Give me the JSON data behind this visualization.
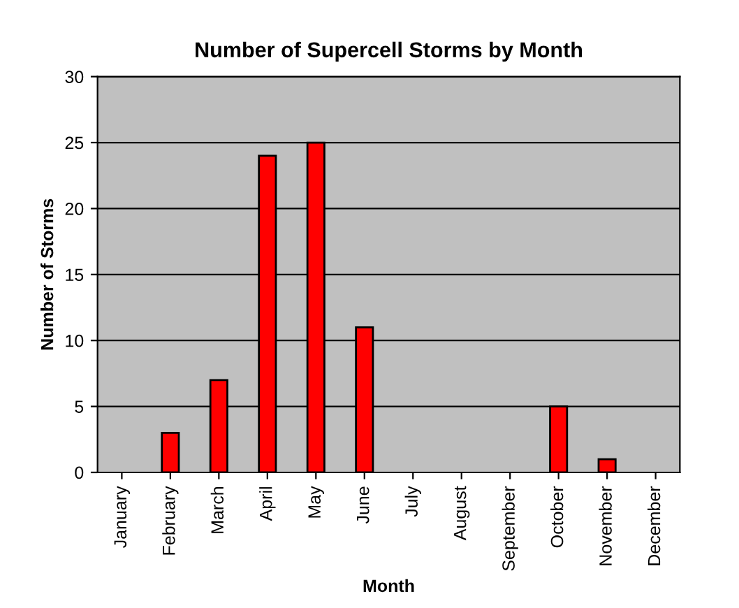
{
  "chart_data": {
    "type": "bar",
    "title": "Number of Supercell Storms by Month",
    "xlabel": "Month",
    "ylabel": "Number of Storms",
    "categories": [
      "January",
      "February",
      "March",
      "April",
      "May",
      "June",
      "July",
      "August",
      "September",
      "October",
      "November",
      "December"
    ],
    "values": [
      0,
      3,
      7,
      24,
      25,
      11,
      0,
      0,
      0,
      5,
      1,
      0
    ],
    "color": "#ff0000",
    "ylim": [
      0,
      30
    ],
    "yticks": [
      0,
      5,
      10,
      15,
      20,
      25,
      30
    ],
    "grid": "y"
  }
}
